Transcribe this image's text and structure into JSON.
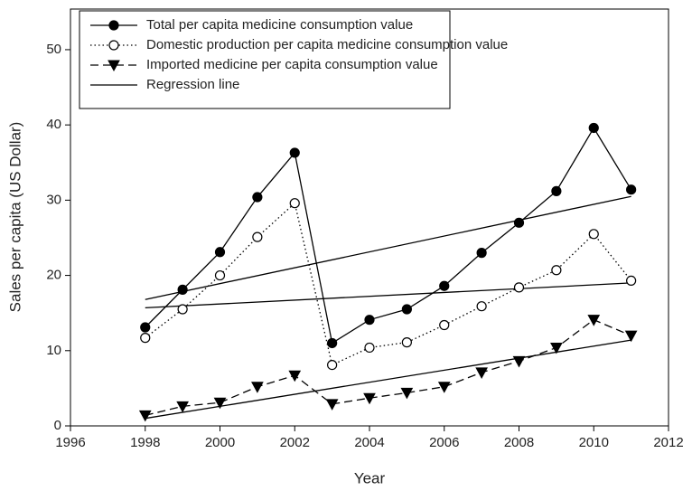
{
  "chart_data": {
    "type": "line",
    "xlabel": "Year",
    "ylabel": "Sales per capita (US Dollar)",
    "x": [
      1998,
      1999,
      2000,
      2001,
      2002,
      2003,
      2004,
      2005,
      2006,
      2007,
      2008,
      2009,
      2010,
      2011
    ],
    "xlim": [
      1996,
      2012
    ],
    "xticks": [
      1996,
      1998,
      2000,
      2002,
      2004,
      2006,
      2008,
      2010,
      2012
    ],
    "ylim": [
      0,
      55.4
    ],
    "yticks": [
      0,
      10,
      20,
      30,
      40,
      50
    ],
    "legend": "upper-left",
    "series": [
      {
        "name": "Total per capita medicine consumption value",
        "color": "#000000",
        "marker": "filled-circle",
        "dash": "solid",
        "values": [
          13.1,
          18.1,
          23.1,
          30.4,
          36.3,
          11.0,
          14.1,
          15.5,
          18.6,
          23.0,
          27.0,
          31.2,
          39.6,
          31.4
        ]
      },
      {
        "name": "Domestic production per capita medicine consumption value",
        "color": "#000000",
        "marker": "open-circle",
        "dash": "dotted",
        "values": [
          11.7,
          15.5,
          20.0,
          25.1,
          29.6,
          8.1,
          10.4,
          11.1,
          13.4,
          15.9,
          18.4,
          20.7,
          25.5,
          19.3
        ]
      },
      {
        "name": "Imported medicine per capita consumption value",
        "color": "#000000",
        "marker": "filled-triangle-down",
        "dash": "dashed",
        "values": [
          1.4,
          2.6,
          3.1,
          5.2,
          6.7,
          2.9,
          3.7,
          4.4,
          5.2,
          7.1,
          8.6,
          10.4,
          14.1,
          12.0
        ]
      }
    ],
    "regression": {
      "name": "Regression line",
      "color": "#000000",
      "x": [
        1998,
        2011
      ],
      "lines": [
        [
          16.8,
          30.5
        ],
        [
          15.7,
          19.0
        ],
        [
          1.0,
          11.4
        ]
      ]
    }
  }
}
